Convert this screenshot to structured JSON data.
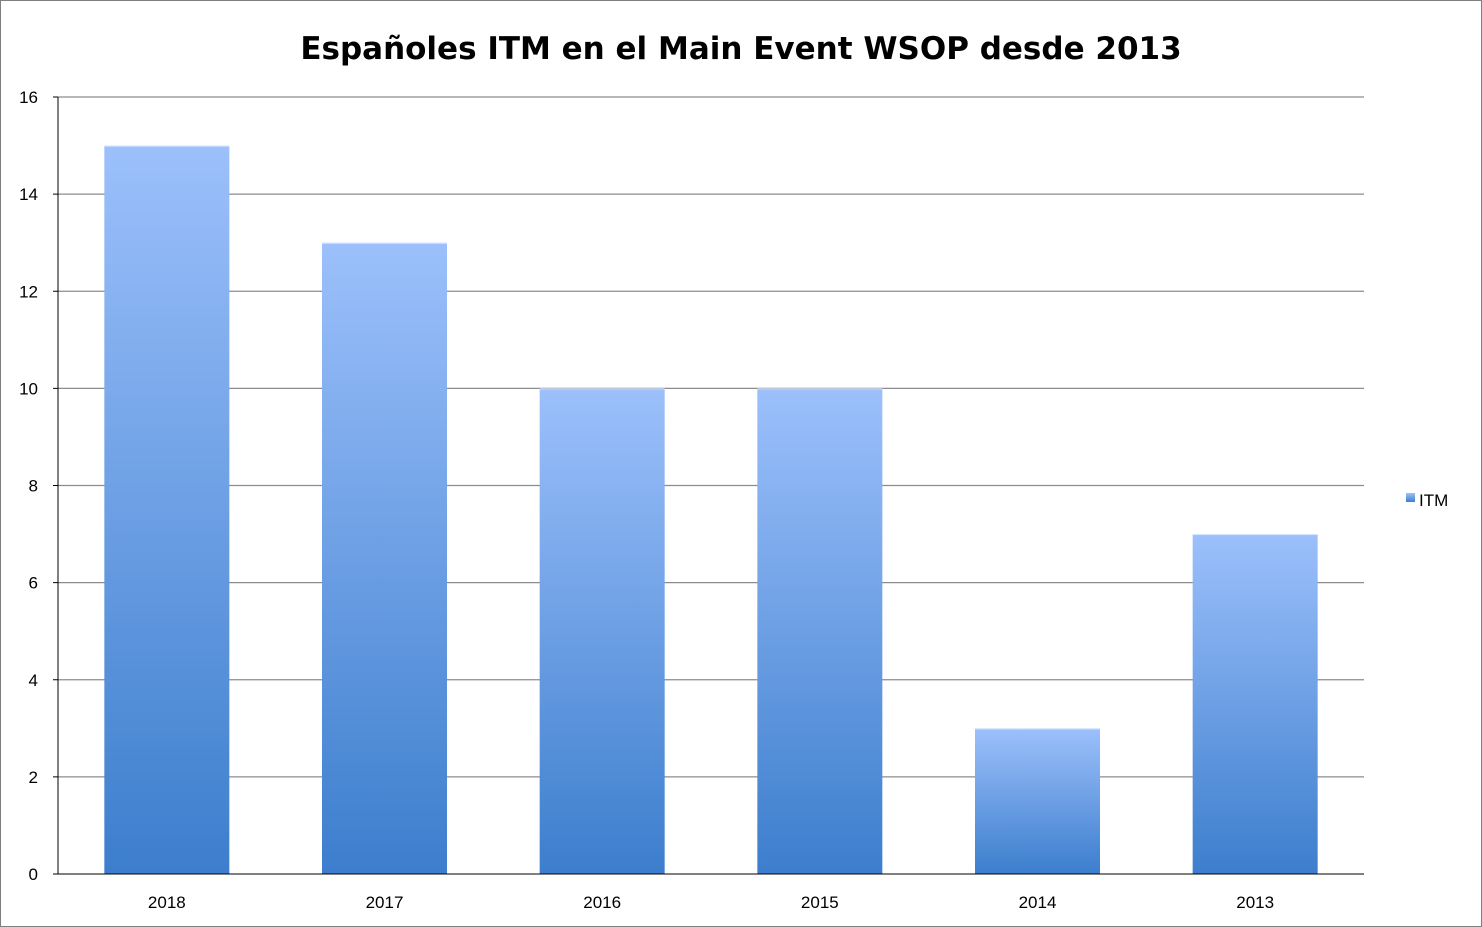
{
  "chart_data": {
    "type": "bar",
    "title": "Españoles ITM en el Main Event WSOP desde 2013",
    "xlabel": "",
    "ylabel": "",
    "categories": [
      "2018",
      "2017",
      "2016",
      "2015",
      "2014",
      "2013"
    ],
    "series": [
      {
        "name": "ITM",
        "values": [
          15,
          13,
          10,
          10,
          3,
          7
        ]
      }
    ],
    "ylim": [
      0,
      16
    ],
    "y_ticks": [
      "0",
      "2",
      "4",
      "6",
      "8",
      "10",
      "12",
      "14",
      "16"
    ],
    "grid": true,
    "legend_position": "right",
    "colors": {
      "bar_top": "#9cc0fb",
      "bar_bottom": "#3c7ecd",
      "grid": "#8c8c8c",
      "axis": "#000000"
    }
  }
}
